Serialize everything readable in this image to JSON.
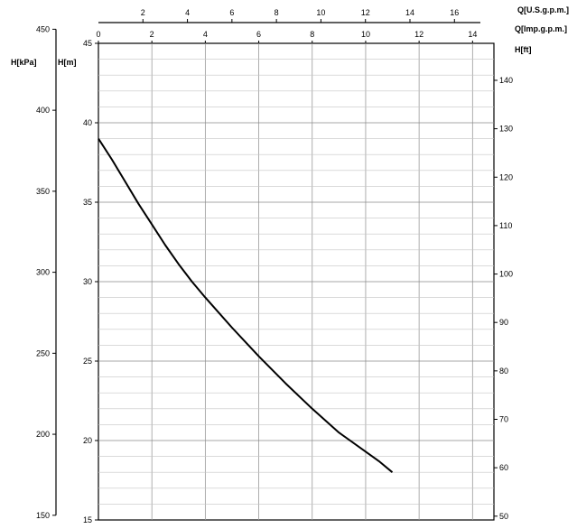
{
  "chart_data": {
    "type": "line",
    "grid": true,
    "axes": {
      "q_usgpm": {
        "label": "Q[U.S.g.p.m.]",
        "ticks": [
          2,
          4,
          6,
          8,
          10,
          12,
          14,
          16
        ]
      },
      "q_impgpm": {
        "label": "Q[Imp.g.p.m.]",
        "ticks": [
          0,
          2,
          4,
          6,
          8,
          10,
          12,
          14
        ]
      },
      "h_kpa": {
        "label": "H[kPa]",
        "ticks": [
          150,
          200,
          250,
          300,
          350,
          400,
          450
        ]
      },
      "h_m": {
        "label": "H[m]",
        "ticks": [
          15,
          20,
          25,
          30,
          35,
          40,
          45
        ],
        "range": [
          15,
          45
        ]
      },
      "h_ft": {
        "label": "H[ft]",
        "ticks": [
          50,
          60,
          70,
          80,
          90,
          100,
          110,
          120,
          130,
          140
        ]
      }
    },
    "xlim_imp": [
      0,
      14.8
    ],
    "series": [
      {
        "x": [
          0,
          0.5,
          1,
          1.5,
          2,
          2.5,
          3,
          3.5,
          4,
          5,
          6,
          7,
          8,
          9,
          10,
          10.5,
          11
        ],
        "y": [
          39,
          37.7,
          36.3,
          34.9,
          33.6,
          32.3,
          31.1,
          30.0,
          29.0,
          27.1,
          25.3,
          23.6,
          22.0,
          20.5,
          19.3,
          18.7,
          18.0
        ]
      }
    ]
  }
}
